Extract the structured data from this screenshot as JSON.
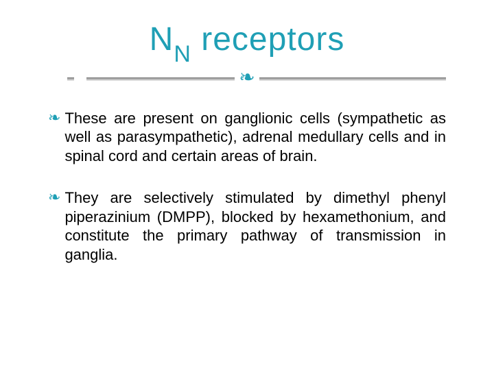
{
  "colors": {
    "accent": "#1f9fb5",
    "text": "#000000",
    "divider": "#7f7f7f",
    "background": "#ffffff"
  },
  "typography": {
    "title_fontsize": 48,
    "title_sub_fontsize": 34,
    "body_fontsize": 22,
    "font_family": "Arial"
  },
  "title": {
    "main": "N",
    "subscript": "N",
    "rest": " receptors"
  },
  "divider_glyph": "❧",
  "bullet_glyph": "❧",
  "bullets": [
    {
      "text": "These are present on ganglionic cells (sympathetic as well as parasympathetic), adrenal medullary cells and in spinal cord and certain areas of brain."
    },
    {
      "text": "They are selectively stimulated by dimethyl phenyl piperazinium (DMPP), blocked by hexamethonium, and constitute the primary pathway of transmission in ganglia."
    }
  ]
}
